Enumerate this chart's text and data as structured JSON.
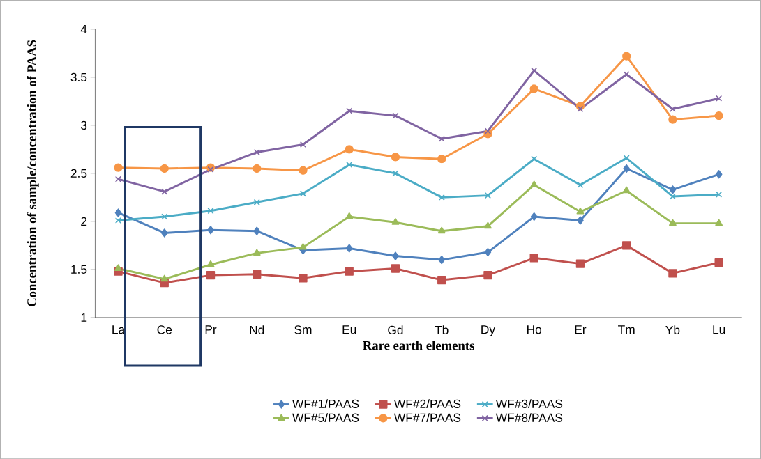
{
  "chart_data": {
    "type": "line",
    "xlabel": "Rare earth elements",
    "ylabel": "Concentration of sample/concentration of PAAS",
    "categories": [
      "La",
      "Ce",
      "Pr",
      "Nd",
      "Sm",
      "Eu",
      "Gd",
      "Tb",
      "Dy",
      "Ho",
      "Er",
      "Tm",
      "Yb",
      "Lu"
    ],
    "ylim": [
      1,
      4
    ],
    "yticks": [
      1,
      1.5,
      2,
      2.5,
      3,
      3.5,
      4
    ],
    "grid": false,
    "legend": "bottom",
    "series": [
      {
        "name": "WF#1/PAAS",
        "color": "#4f81bd",
        "marker": "diamond",
        "values": [
          2.09,
          1.88,
          1.91,
          1.9,
          1.7,
          1.72,
          1.64,
          1.6,
          1.68,
          2.05,
          2.01,
          2.55,
          2.33,
          2.49
        ]
      },
      {
        "name": "WF#2/PAAS",
        "color": "#c0504d",
        "marker": "square",
        "values": [
          1.48,
          1.36,
          1.44,
          1.45,
          1.41,
          1.48,
          1.51,
          1.39,
          1.44,
          1.62,
          1.56,
          1.75,
          1.46,
          1.57
        ]
      },
      {
        "name": "WF#3/PAAS",
        "color": "#4bacc6",
        "marker": "cross",
        "values": [
          2.01,
          2.05,
          2.11,
          2.2,
          2.29,
          2.59,
          2.5,
          2.25,
          2.27,
          2.65,
          2.38,
          2.66,
          2.26,
          2.28
        ]
      },
      {
        "name": "WF#5/PAAS",
        "color": "#9bbb59",
        "marker": "triangle",
        "values": [
          1.51,
          1.4,
          1.55,
          1.67,
          1.73,
          2.05,
          1.99,
          1.9,
          1.95,
          2.38,
          2.1,
          2.32,
          1.98,
          1.98
        ]
      },
      {
        "name": "WF#7/PAAS",
        "color": "#f79646",
        "marker": "circle",
        "values": [
          2.56,
          2.55,
          2.56,
          2.55,
          2.53,
          2.75,
          2.67,
          2.65,
          2.91,
          3.38,
          3.2,
          3.72,
          3.06,
          3.1
        ]
      },
      {
        "name": "WF#8/PAAS",
        "color": "#8064a2",
        "marker": "cross",
        "values": [
          2.44,
          2.31,
          2.54,
          2.72,
          2.8,
          3.15,
          3.1,
          2.86,
          2.94,
          3.57,
          3.17,
          3.53,
          3.17,
          3.28
        ]
      }
    ]
  }
}
